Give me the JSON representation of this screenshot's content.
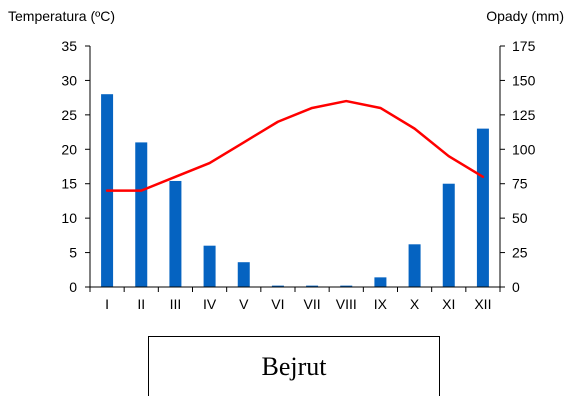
{
  "chart_data": {
    "type": "bar+line",
    "title": "",
    "categories": [
      "I",
      "II",
      "III",
      "IV",
      "V",
      "VI",
      "VII",
      "VIII",
      "IX",
      "X",
      "XI",
      "XII"
    ],
    "series": [
      {
        "type": "bar",
        "axis": "right",
        "color": "#0563C1",
        "values": [
          140,
          105,
          77,
          30,
          18,
          1,
          1,
          1,
          7,
          31,
          75,
          115
        ]
      },
      {
        "type": "line",
        "axis": "left",
        "color": "#FF0000",
        "values": [
          14,
          14,
          16,
          18,
          21,
          24,
          26,
          27,
          26,
          23,
          19,
          16
        ]
      }
    ],
    "ylabel_left": "Temperatura (ºC)",
    "ylabel_right": "Opady (mm)",
    "ylim_left": [
      0,
      35
    ],
    "yticks_left": [
      0,
      5,
      10,
      15,
      20,
      25,
      30,
      35
    ],
    "ylim_right": [
      0,
      175
    ],
    "yticks_right": [
      0,
      25,
      50,
      75,
      100,
      125,
      150,
      175
    ],
    "grid": false,
    "legend": "none"
  },
  "caption": "Bejrut"
}
